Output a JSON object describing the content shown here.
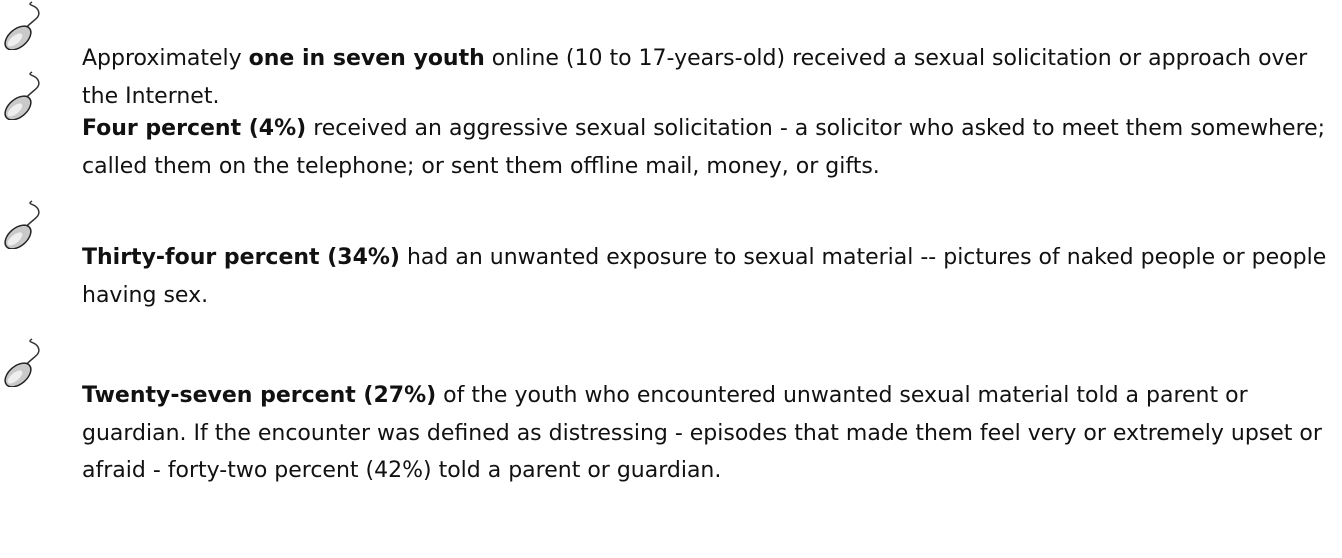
{
  "items": [
    {
      "parts": [
        {
          "text": "Approximately ",
          "bold": false
        },
        {
          "text": "one in seven youth",
          "bold": true
        },
        {
          "text": " online (10 to 17-years-old) received a sexual solicitation or approach over the Internet.",
          "bold": false
        }
      ]
    },
    {
      "parts": [
        {
          "text": "Four percent (4%)",
          "bold": true
        },
        {
          "text": " received an aggressive sexual solicitation - a solicitor who asked to meet them somewhere; called them on the telephone; or sent them offline mail, money, or gifts.",
          "bold": false
        }
      ]
    },
    {
      "parts": [
        {
          "text": "Thirty-four percent (34%)",
          "bold": true
        },
        {
          "text": " had an unwanted exposure to sexual material -- pictures of naked people or people having sex.",
          "bold": false
        }
      ]
    },
    {
      "parts": [
        {
          "text": "Twenty-seven percent (27%)",
          "bold": true
        },
        {
          "text": " of the youth who encountered unwanted sexual material told a parent or guardian. If the encounter was defined as distressing - episodes that made them feel very or extremely upset or afraid - forty-two percent (42%) told a parent or guardian.",
          "bold": false
        }
      ]
    }
  ]
}
